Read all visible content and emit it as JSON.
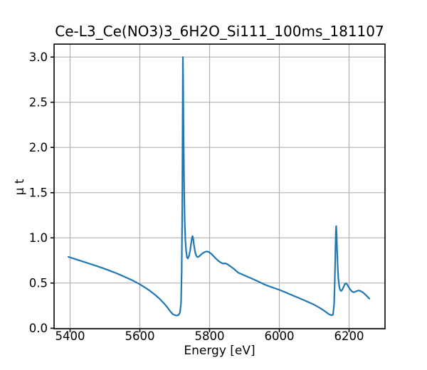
{
  "chart_data": {
    "type": "line",
    "title": "Ce-L3_Ce(NO3)3_6H2O_Si111_100ms_181107",
    "xlabel": "Energy [eV]",
    "ylabel": "μ t",
    "xlim": [
      5354,
      6303
    ],
    "ylim": [
      -0.005,
      3.143
    ],
    "xticks": [
      5400,
      5600,
      5800,
      6000,
      6200
    ],
    "xtick_labels": [
      "5400",
      "5600",
      "5800",
      "6000",
      "6200"
    ],
    "yticks": [
      0.0,
      0.5,
      1.0,
      1.5,
      2.0,
      2.5,
      3.0
    ],
    "ytick_labels": [
      "0.0",
      "0.5",
      "1.0",
      "1.5",
      "2.0",
      "2.5",
      "3.0"
    ],
    "grid": true,
    "legend": "none",
    "line_color": "#1f77b4",
    "grid_color": "#b0b0b0",
    "spine_color": "#000000",
    "series": [
      {
        "name": "mu_t_spectrum",
        "points": [
          [
            5395,
            0.79
          ],
          [
            5415,
            0.765
          ],
          [
            5435,
            0.74
          ],
          [
            5455,
            0.715
          ],
          [
            5475,
            0.69
          ],
          [
            5495,
            0.663
          ],
          [
            5515,
            0.635
          ],
          [
            5535,
            0.605
          ],
          [
            5555,
            0.572
          ],
          [
            5575,
            0.537
          ],
          [
            5595,
            0.497
          ],
          [
            5612,
            0.458
          ],
          [
            5628,
            0.417
          ],
          [
            5643,
            0.372
          ],
          [
            5657,
            0.325
          ],
          [
            5670,
            0.272
          ],
          [
            5680,
            0.226
          ],
          [
            5688,
            0.183
          ],
          [
            5694,
            0.158
          ],
          [
            5700,
            0.146
          ],
          [
            5706,
            0.141
          ],
          [
            5711,
            0.147
          ],
          [
            5715,
            0.175
          ],
          [
            5718,
            0.28
          ],
          [
            5720,
            0.62
          ],
          [
            5721.5,
            1.35
          ],
          [
            5722.5,
            2.3
          ],
          [
            5723.3,
            3.0
          ],
          [
            5724.3,
            2.72
          ],
          [
            5725.5,
            2.1
          ],
          [
            5727,
            1.52
          ],
          [
            5728.5,
            1.19
          ],
          [
            5730.5,
            0.97
          ],
          [
            5732.5,
            0.86
          ],
          [
            5735,
            0.785
          ],
          [
            5737.5,
            0.772
          ],
          [
            5740.5,
            0.795
          ],
          [
            5744,
            0.858
          ],
          [
            5747,
            0.94
          ],
          [
            5749.5,
            1.005
          ],
          [
            5751,
            1.02
          ],
          [
            5752.5,
            1.0
          ],
          [
            5755,
            0.925
          ],
          [
            5758,
            0.85
          ],
          [
            5761.5,
            0.803
          ],
          [
            5765,
            0.787
          ],
          [
            5769,
            0.792
          ],
          [
            5774,
            0.81
          ],
          [
            5781,
            0.832
          ],
          [
            5787,
            0.846
          ],
          [
            5792,
            0.85
          ],
          [
            5797,
            0.845
          ],
          [
            5803,
            0.83
          ],
          [
            5809,
            0.808
          ],
          [
            5816,
            0.778
          ],
          [
            5824,
            0.75
          ],
          [
            5832,
            0.727
          ],
          [
            5839,
            0.715
          ],
          [
            5845,
            0.718
          ],
          [
            5850,
            0.71
          ],
          [
            5858,
            0.69
          ],
          [
            5869,
            0.659
          ],
          [
            5882,
            0.615
          ],
          [
            5900,
            0.585
          ],
          [
            5920,
            0.552
          ],
          [
            5940,
            0.517
          ],
          [
            5960,
            0.48
          ],
          [
            5980,
            0.452
          ],
          [
            6000,
            0.425
          ],
          [
            6020,
            0.393
          ],
          [
            6040,
            0.361
          ],
          [
            6060,
            0.329
          ],
          [
            6080,
            0.295
          ],
          [
            6100,
            0.26
          ],
          [
            6115,
            0.228
          ],
          [
            6127,
            0.198
          ],
          [
            6137,
            0.17
          ],
          [
            6144,
            0.152
          ],
          [
            6150,
            0.144
          ],
          [
            6154,
            0.152
          ],
          [
            6157,
            0.27
          ],
          [
            6159,
            0.52
          ],
          [
            6160.5,
            0.82
          ],
          [
            6162,
            1.06
          ],
          [
            6163,
            1.13
          ],
          [
            6164.2,
            1.05
          ],
          [
            6165.5,
            0.88
          ],
          [
            6167,
            0.71
          ],
          [
            6169,
            0.56
          ],
          [
            6171.5,
            0.465
          ],
          [
            6174,
            0.425
          ],
          [
            6177,
            0.412
          ],
          [
            6181,
            0.43
          ],
          [
            6185,
            0.465
          ],
          [
            6188,
            0.49
          ],
          [
            6191,
            0.498
          ],
          [
            6194,
            0.487
          ],
          [
            6198,
            0.46
          ],
          [
            6203,
            0.43
          ],
          [
            6208,
            0.408
          ],
          [
            6212,
            0.399
          ],
          [
            6217,
            0.403
          ],
          [
            6222,
            0.412
          ],
          [
            6227,
            0.418
          ],
          [
            6232,
            0.414
          ],
          [
            6238,
            0.4
          ],
          [
            6244,
            0.382
          ],
          [
            6251,
            0.356
          ],
          [
            6258,
            0.328
          ]
        ]
      }
    ]
  }
}
